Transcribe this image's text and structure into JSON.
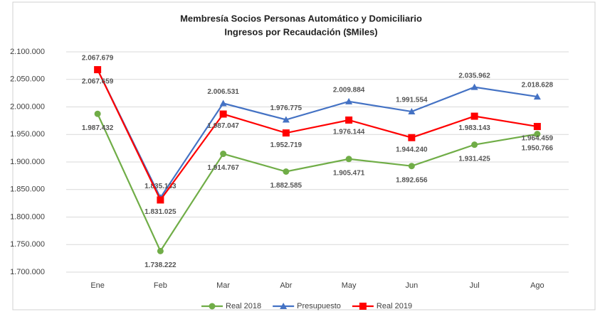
{
  "chart_data": {
    "type": "line",
    "title": "Membresía Socios Personas Automático y Domiciliario",
    "subtitle": "Ingresos por Recaudación ($Miles)",
    "categories": [
      "Ene",
      "Feb",
      "Mar",
      "Abr",
      "May",
      "Jun",
      "Jul",
      "Ago"
    ],
    "series": [
      {
        "name": "Real 2018",
        "color": "#70ad47",
        "marker": "circle",
        "values": [
          1987432,
          1738222,
          1914767,
          1882585,
          1905471,
          1892656,
          1931425,
          1950766
        ],
        "value_labels": [
          "1.987.432",
          "1.738.222",
          "1.914.767",
          "1.882.585",
          "1.905.471",
          "1.892.656",
          "1.931.425",
          "1.950.766"
        ]
      },
      {
        "name": "Presupuesto",
        "color": "#4472c4",
        "marker": "triangle",
        "values": [
          2067679,
          1835133,
          2006531,
          1976775,
          2009884,
          1991554,
          2035962,
          2018628
        ],
        "value_labels": [
          "2.067.679",
          "1.835.133",
          "2.006.531",
          "1.976.775",
          "2.009.884",
          "1.991.554",
          "2.035.962",
          "2.018.628"
        ]
      },
      {
        "name": "Real 2019",
        "color": "#ff0000",
        "marker": "square",
        "values": [
          2067659,
          1831025,
          1987047,
          1952719,
          1976144,
          1944240,
          1983143,
          1964459
        ],
        "value_labels": [
          "2.067.659",
          "1.831.025",
          "1.987.047",
          "1.952.719",
          "1.976.144",
          "1.944.240",
          "1.983.143",
          "1.964.459"
        ]
      }
    ],
    "ylim": [
      1700000,
      2100000
    ],
    "yticks": [
      {
        "value": 1700000,
        "label": "1.700.000"
      },
      {
        "value": 1750000,
        "label": "1.750.000"
      },
      {
        "value": 1800000,
        "label": "1.800.000"
      },
      {
        "value": 1850000,
        "label": "1.850.000"
      },
      {
        "value": 1900000,
        "label": "1.900.000"
      },
      {
        "value": 1950000,
        "label": "1.950.000"
      },
      {
        "value": 2000000,
        "label": "2.000.000"
      },
      {
        "value": 2050000,
        "label": "2.050.000"
      },
      {
        "value": 2100000,
        "label": "2.100.000"
      }
    ],
    "grid": true,
    "legend": "bottom"
  }
}
